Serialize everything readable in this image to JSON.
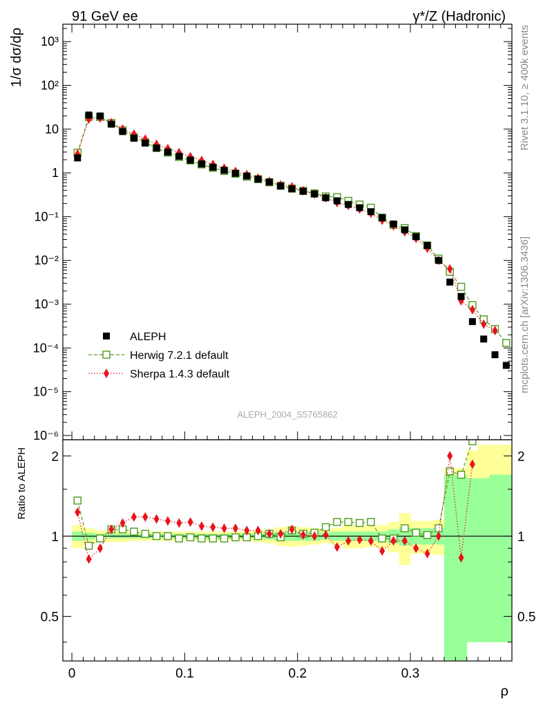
{
  "header": {
    "left": "91 GeV ee",
    "right": "γ*/Z (Hadronic)"
  },
  "side_labels": {
    "rivet": "Rivet 3.1.10, ≥ 400k events",
    "source": "mcplots.cern.ch [arXiv:1306.3436]"
  },
  "analysis_id": "ALEPH_2004_S5765862",
  "chart_data": [
    {
      "type": "scatter",
      "ylabel": "1/σ dσ/dρ",
      "xlabel": "ρ",
      "y_scale": "log",
      "xlim": [
        -0.008,
        0.39
      ],
      "ylim": [
        8e-07,
        2500
      ],
      "y_tick_labels": [
        "10⁻⁶",
        "10⁻⁵",
        "10⁻⁴",
        "10⁻³",
        "10⁻²",
        "10⁻¹",
        "1",
        "10",
        "10²",
        "10³"
      ],
      "y_ticks": [
        1e-06,
        1e-05,
        0.0001,
        0.001,
        0.01,
        0.1,
        1,
        10,
        100,
        1000
      ],
      "legend_position": "bottom-left",
      "series": [
        {
          "name": "ALEPH",
          "color": "#000000",
          "marker": "filled-square",
          "x": [
            0.005,
            0.015,
            0.025,
            0.035,
            0.045,
            0.055,
            0.065,
            0.075,
            0.085,
            0.095,
            0.105,
            0.115,
            0.125,
            0.135,
            0.145,
            0.155,
            0.165,
            0.175,
            0.185,
            0.195,
            0.205,
            0.215,
            0.225,
            0.235,
            0.245,
            0.255,
            0.265,
            0.275,
            0.285,
            0.295,
            0.305,
            0.315,
            0.325,
            0.335,
            0.345,
            0.355,
            0.365,
            0.375,
            0.385
          ],
          "y": [
            2.2,
            21,
            20,
            13,
            8.8,
            6.2,
            4.8,
            3.7,
            3.0,
            2.4,
            1.95,
            1.6,
            1.35,
            1.15,
            0.98,
            0.85,
            0.72,
            0.62,
            0.5,
            0.43,
            0.38,
            0.33,
            0.27,
            0.23,
            0.19,
            0.16,
            0.13,
            0.095,
            0.068,
            0.05,
            0.035,
            0.022,
            0.01,
            0.0032,
            0.0015,
            0.0004,
            0.00016,
            7e-05,
            4e-05
          ]
        },
        {
          "name": "Herwig 7.2.1 default",
          "color": "#4d9a1b",
          "marker": "open-square",
          "line": "dashed",
          "x": [
            0.005,
            0.015,
            0.025,
            0.035,
            0.045,
            0.055,
            0.065,
            0.075,
            0.085,
            0.095,
            0.105,
            0.115,
            0.125,
            0.135,
            0.145,
            0.155,
            0.165,
            0.175,
            0.185,
            0.195,
            0.205,
            0.215,
            0.225,
            0.235,
            0.245,
            0.255,
            0.265,
            0.275,
            0.285,
            0.295,
            0.305,
            0.315,
            0.325,
            0.335,
            0.345,
            0.355,
            0.365,
            0.375,
            0.385
          ],
          "y": [
            2.9,
            19,
            19,
            13.8,
            9.4,
            6.6,
            5.0,
            3.7,
            2.9,
            2.3,
            1.93,
            1.56,
            1.31,
            1.11,
            0.96,
            0.82,
            0.72,
            0.61,
            0.51,
            0.44,
            0.39,
            0.34,
            0.29,
            0.28,
            0.23,
            0.19,
            0.16,
            0.095,
            0.065,
            0.055,
            0.036,
            0.022,
            0.011,
            0.0055,
            0.0025,
            0.00095,
            0.00045,
            0.00027,
            0.00013
          ]
        },
        {
          "name": "Sherpa 1.4.3 default",
          "color": "#e8141c",
          "marker": "filled-diamond",
          "line": "dotted",
          "x": [
            0.005,
            0.015,
            0.025,
            0.035,
            0.045,
            0.055,
            0.065,
            0.075,
            0.085,
            0.095,
            0.105,
            0.115,
            0.125,
            0.135,
            0.145,
            0.155,
            0.165,
            0.175,
            0.185,
            0.195,
            0.205,
            0.215,
            0.225,
            0.235,
            0.245,
            0.255,
            0.265,
            0.275,
            0.285,
            0.295,
            0.305,
            0.315,
            0.325,
            0.335,
            0.345,
            0.355,
            0.365,
            0.375
          ],
          "y": [
            2.7,
            17,
            18,
            14,
            10,
            7.7,
            5.9,
            4.5,
            3.6,
            2.9,
            2.35,
            1.92,
            1.56,
            1.28,
            1.08,
            0.91,
            0.76,
            0.64,
            0.53,
            0.48,
            0.39,
            0.33,
            0.27,
            0.21,
            0.18,
            0.15,
            0.12,
            0.083,
            0.062,
            0.045,
            0.032,
            0.019,
            0.01,
            0.0064,
            0.0012,
            0.00075,
            0.00035,
            0.00025
          ]
        }
      ]
    },
    {
      "type": "scatter",
      "ylabel": "Ratio to ALEPH",
      "xlabel": "ρ",
      "xlim": [
        -0.008,
        0.39
      ],
      "ylim": [
        0.34,
        2.3
      ],
      "x_tick_labels": [
        "0",
        "0.1",
        "0.2",
        "0.3"
      ],
      "x_ticks": [
        0,
        0.1,
        0.2,
        0.3
      ],
      "y_tick_labels": [
        "0.5",
        "1",
        "2"
      ],
      "y_ticks": [
        0.5,
        1,
        2
      ],
      "bands": {
        "x_edges": [
          0.0,
          0.01,
          0.02,
          0.03,
          0.04,
          0.05,
          0.06,
          0.07,
          0.08,
          0.09,
          0.1,
          0.11,
          0.12,
          0.13,
          0.14,
          0.15,
          0.16,
          0.17,
          0.18,
          0.19,
          0.2,
          0.21,
          0.22,
          0.23,
          0.24,
          0.25,
          0.26,
          0.27,
          0.28,
          0.29,
          0.3,
          0.31,
          0.32,
          0.33,
          0.34,
          0.35,
          0.36,
          0.37,
          0.38,
          0.39
        ],
        "stat_color": "#99ff99",
        "syst_color": "#ffff99",
        "inner_lo": [
          0.96,
          0.97,
          0.98,
          0.98,
          0.98,
          0.98,
          0.98,
          0.98,
          0.98,
          0.98,
          0.98,
          0.98,
          0.98,
          0.98,
          0.98,
          0.98,
          0.98,
          0.97,
          0.96,
          0.96,
          0.96,
          0.96,
          0.97,
          0.96,
          0.96,
          0.96,
          0.96,
          0.96,
          0.94,
          0.92,
          0.93,
          0.93,
          0.93,
          0.3,
          0.3,
          0.4,
          0.4,
          0.4,
          0.4
        ],
        "inner_hi": [
          1.04,
          1.03,
          1.02,
          1.02,
          1.02,
          1.02,
          1.02,
          1.02,
          1.02,
          1.02,
          1.02,
          1.02,
          1.02,
          1.02,
          1.02,
          1.02,
          1.02,
          1.03,
          1.04,
          1.04,
          1.04,
          1.04,
          1.03,
          1.04,
          1.04,
          1.04,
          1.04,
          1.04,
          1.06,
          1.08,
          1.07,
          1.07,
          1.07,
          1.7,
          1.7,
          1.65,
          1.65,
          1.7,
          1.7
        ],
        "outer_lo": [
          0.9,
          0.93,
          0.95,
          0.95,
          0.95,
          0.96,
          0.96,
          0.96,
          0.96,
          0.96,
          0.96,
          0.96,
          0.96,
          0.96,
          0.96,
          0.96,
          0.95,
          0.94,
          0.92,
          0.91,
          0.92,
          0.93,
          0.94,
          0.93,
          0.9,
          0.9,
          0.91,
          0.9,
          0.87,
          0.78,
          0.86,
          0.86,
          0.85,
          0.3,
          0.3,
          0.4,
          0.4,
          0.4,
          0.4
        ],
        "outer_hi": [
          1.1,
          1.07,
          1.05,
          1.05,
          1.05,
          1.04,
          1.04,
          1.04,
          1.04,
          1.04,
          1.04,
          1.04,
          1.04,
          1.04,
          1.04,
          1.04,
          1.05,
          1.06,
          1.08,
          1.09,
          1.08,
          1.07,
          1.06,
          1.07,
          1.1,
          1.1,
          1.09,
          1.1,
          1.13,
          1.22,
          1.14,
          1.14,
          1.15,
          1.8,
          1.8,
          2.1,
          2.2,
          2.2,
          2.2
        ]
      },
      "series": [
        {
          "name": "Herwig 7.2.1 default",
          "color": "#4d9a1b",
          "marker": "open-square",
          "line": "dashed",
          "x": [
            0.005,
            0.015,
            0.025,
            0.035,
            0.045,
            0.055,
            0.065,
            0.075,
            0.085,
            0.095,
            0.105,
            0.115,
            0.125,
            0.135,
            0.145,
            0.155,
            0.165,
            0.175,
            0.185,
            0.195,
            0.205,
            0.215,
            0.225,
            0.235,
            0.245,
            0.255,
            0.265,
            0.275,
            0.285,
            0.295,
            0.305,
            0.315,
            0.325,
            0.335,
            0.345,
            0.355
          ],
          "y": [
            1.36,
            0.92,
            0.98,
            1.06,
            1.06,
            1.04,
            1.02,
            1.0,
            1.0,
            0.98,
            0.99,
            0.98,
            0.98,
            0.98,
            0.99,
            0.99,
            1.0,
            1.02,
            0.99,
            1.05,
            1.02,
            1.03,
            1.08,
            1.13,
            1.13,
            1.12,
            1.13,
            0.98,
            0.98,
            1.07,
            1.03,
            1.01,
            1.07,
            1.75,
            1.7,
            2.27
          ]
        },
        {
          "name": "Sherpa 1.4.3 default",
          "color": "#e8141c",
          "marker": "filled-diamond",
          "line": "dotted",
          "x": [
            0.005,
            0.015,
            0.025,
            0.035,
            0.045,
            0.055,
            0.065,
            0.075,
            0.085,
            0.095,
            0.105,
            0.115,
            0.125,
            0.135,
            0.145,
            0.155,
            0.165,
            0.175,
            0.185,
            0.195,
            0.205,
            0.215,
            0.225,
            0.235,
            0.245,
            0.255,
            0.265,
            0.275,
            0.285,
            0.295,
            0.305,
            0.315,
            0.325,
            0.335,
            0.345,
            0.355
          ],
          "y": [
            1.23,
            0.82,
            0.9,
            1.06,
            1.12,
            1.18,
            1.18,
            1.16,
            1.14,
            1.12,
            1.13,
            1.09,
            1.08,
            1.07,
            1.07,
            1.05,
            1.05,
            1.02,
            1.02,
            1.06,
            1.01,
            1.0,
            1.01,
            0.91,
            0.96,
            0.97,
            0.96,
            0.88,
            0.96,
            0.96,
            0.9,
            0.86,
            1.0,
            2.0,
            0.83,
            1.86
          ]
        }
      ]
    }
  ]
}
